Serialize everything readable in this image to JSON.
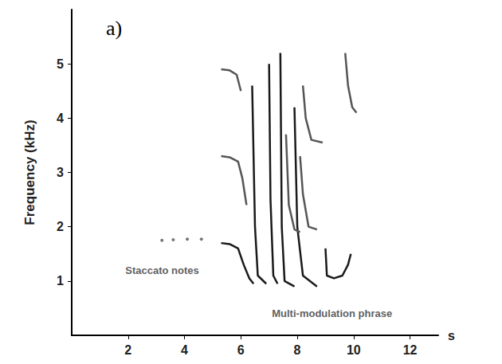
{
  "chart_data": {
    "type": "line",
    "panel": "a)",
    "x_label": "s",
    "y_label": "Frequency (kHz)",
    "xlim": [
      0,
      13
    ],
    "xticks": [
      2,
      4,
      6,
      8,
      10,
      12
    ],
    "ylim": [
      0,
      6
    ],
    "yticks": [
      1,
      2,
      3,
      4,
      5
    ],
    "grid": false,
    "series": [
      {
        "type": "scatter",
        "marker": "circle",
        "color": "#555555",
        "x": [
          3.2,
          3.6,
          4.1,
          4.6
        ],
        "values": [
          1.75,
          1.76,
          1.77,
          1.77
        ]
      },
      {
        "type": "line",
        "marker": "none",
        "color": "#1a1a1a",
        "x": [
          5.3,
          5.6,
          5.9,
          6.1,
          6.3,
          6.45,
          null,
          6.4,
          6.5,
          6.6,
          6.9,
          null,
          7.0,
          7.05,
          7.15,
          7.3,
          null,
          7.4,
          7.45,
          7.55,
          7.9,
          null,
          7.9,
          8.0,
          8.2,
          8.7,
          null,
          9.0,
          9.05,
          9.3,
          9.6,
          9.8,
          9.9
        ],
        "values": [
          1.7,
          1.68,
          1.6,
          1.3,
          1.05,
          0.95,
          null,
          4.6,
          2.0,
          1.1,
          0.95,
          null,
          5.0,
          2.5,
          1.1,
          0.95,
          null,
          5.2,
          2.0,
          1.0,
          0.9,
          null,
          4.2,
          2.0,
          1.1,
          0.9,
          null,
          1.6,
          1.1,
          1.05,
          1.1,
          1.3,
          1.5
        ]
      },
      {
        "type": "line",
        "marker": "none",
        "color": "#555555",
        "x": [
          5.3,
          5.6,
          5.9,
          6.05,
          6.2,
          null,
          5.3,
          5.6,
          5.85,
          6.0,
          null,
          7.6,
          7.7,
          7.9,
          8.1,
          null,
          8.1,
          8.2,
          8.4,
          8.7,
          null,
          8.2,
          8.3,
          8.5,
          8.9,
          null,
          9.7,
          9.8,
          9.95,
          10.1
        ],
        "values": [
          3.3,
          3.28,
          3.2,
          2.9,
          2.4,
          null,
          4.9,
          4.88,
          4.8,
          4.5,
          null,
          3.7,
          2.4,
          1.95,
          1.9,
          null,
          3.3,
          2.6,
          2.0,
          1.95,
          null,
          4.6,
          4.0,
          3.6,
          3.55,
          null,
          5.2,
          4.6,
          4.2,
          4.1
        ]
      }
    ],
    "annotations": [
      {
        "text": "Staccato notes",
        "x": 1.9,
        "y": 1.2
      },
      {
        "text": "Multi-modulation phrase",
        "x": 7.1,
        "y": 0.4
      }
    ]
  }
}
